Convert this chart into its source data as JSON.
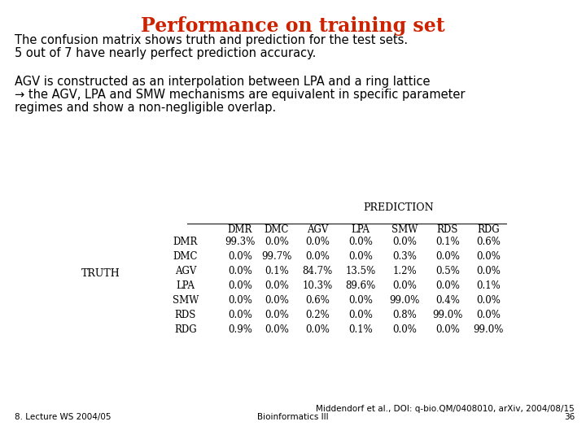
{
  "title": "Performance on training set",
  "title_color": "#CC2200",
  "title_fontsize": 17,
  "bg_color": "#FFFFFF",
  "text_line1": "The confusion matrix shows truth and prediction for the test sets.",
  "text_line2": "5 out of 7 have nearly perfect prediction accuracy.",
  "text_line3": "AGV is constructed as an interpolation between LPA and a ring lattice",
  "text_line4": "→ the AGV, LPA and SMW mechanisms are equivalent in specific parameter",
  "text_line5": "regimes and show a non-negligible overlap.",
  "pred_label": "Pʀᴇᴅɪᴄᴛɪᴏɴ",
  "pred_label_plain": "PREDICTION",
  "truth_label": "Tʀᴜᴛʜ",
  "truth_label_plain": "TRUTH",
  "col_headers": [
    "DMR",
    "DMC",
    "AGV",
    "LPA",
    "SMW",
    "RDS",
    "RDG"
  ],
  "row_headers": [
    "DMR",
    "DMC",
    "AGV",
    "LPA",
    "SMW",
    "RDS",
    "RDG"
  ],
  "matrix": [
    [
      "99.3%",
      "0.0%",
      "0.0%",
      "0.0%",
      "0.0%",
      "0.1%",
      "0.6%"
    ],
    [
      "0.0%",
      "99.7%",
      "0.0%",
      "0.0%",
      "0.3%",
      "0.0%",
      "0.0%"
    ],
    [
      "0.0%",
      "0.1%",
      "84.7%",
      "13.5%",
      "1.2%",
      "0.5%",
      "0.0%"
    ],
    [
      "0.0%",
      "0.0%",
      "10.3%",
      "89.6%",
      "0.0%",
      "0.0%",
      "0.1%"
    ],
    [
      "0.0%",
      "0.0%",
      "0.6%",
      "0.0%",
      "99.0%",
      "0.4%",
      "0.0%"
    ],
    [
      "0.0%",
      "0.0%",
      "0.2%",
      "0.0%",
      "0.8%",
      "99.0%",
      "0.0%"
    ],
    [
      "0.9%",
      "0.0%",
      "0.0%",
      "0.1%",
      "0.0%",
      "0.0%",
      "99.0%"
    ]
  ],
  "footer_left": "8. Lecture WS 2004/05",
  "footer_center": "Bioinformatics III",
  "footer_right": "Middendorf et al., DOI: q-bio.QM/0408010, arXiv, 2004/08/15",
  "footer_page": "36"
}
